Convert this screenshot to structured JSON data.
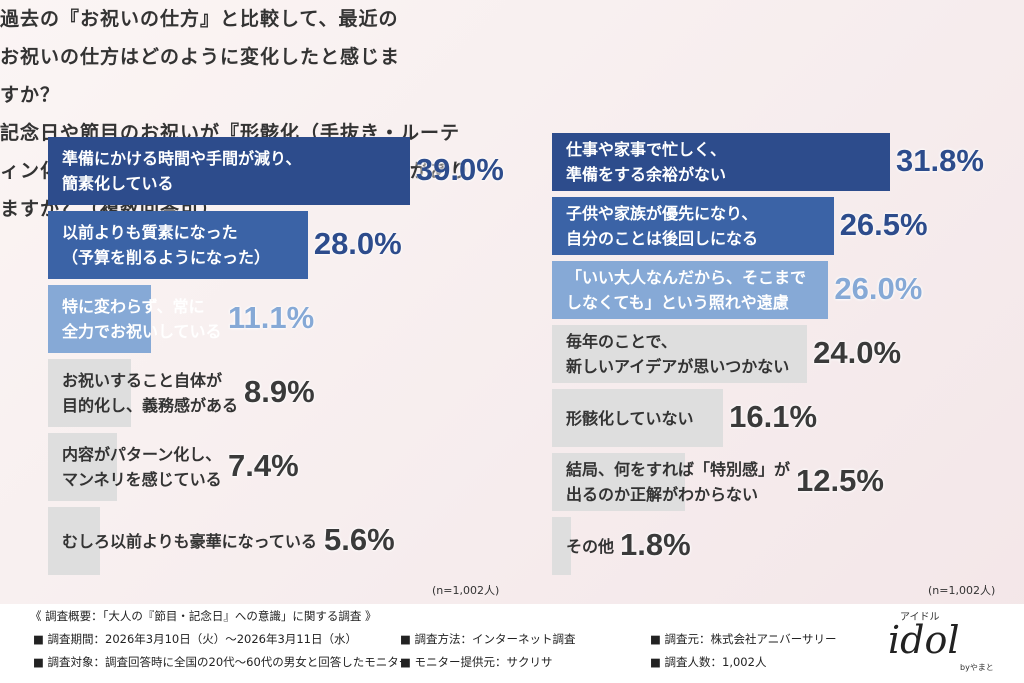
{
  "chart_data": [
    {
      "type": "bar",
      "orientation": "horizontal",
      "title": "過去の『お祝いの仕方』と比較して、最近のお祝いの仕方はどのように変化したと感じますか？",
      "categories": [
        "準備にかける時間や手間が減り、\n簡素化している",
        "以前よりも質素になった\n（予算を削るようになった）",
        "特に変わらず、常に\n全力でお祝いしている",
        "お祝いすること自体が\n目的化し、義務感がある",
        "内容がパターン化し、\nマンネリを感じている",
        "むしろ以前よりも豪華になっている"
      ],
      "values": [
        39.0,
        28.0,
        11.1,
        8.9,
        7.4,
        5.6
      ],
      "value_labels": [
        "39.0%",
        "28.0%",
        "11.1%",
        "8.9%",
        "7.4%",
        "5.6%"
      ],
      "colors": [
        "#2d4c8c",
        "#3b63a6",
        "#86a9d6",
        "#dedede",
        "#dedede",
        "#dedede"
      ],
      "note": "(n=1,002人)"
    },
    {
      "type": "bar",
      "orientation": "horizontal",
      "title": "記念日や節目のお祝いが『形骸化（手抜き・ルーティン化）』してしまう理由にはどのようなものがありますか？（複数回答可）",
      "categories": [
        "仕事や家事で忙しく、\n準備をする余裕がない",
        "子供や家族が優先になり、\n自分のことは後回しになる",
        "「いい大人なんだから、そこまで\nしなくても」という照れや遠慮",
        "毎年のことで、\n新しいアイデアが思いつかない",
        "形骸化していない",
        "結局、何をすれば「特別感」が\n出るのか正解がわからない",
        "その他"
      ],
      "values": [
        31.8,
        26.5,
        26.0,
        24.0,
        16.1,
        12.5,
        1.8
      ],
      "value_labels": [
        "31.8%",
        "26.5%",
        "26.0%",
        "24.0%",
        "16.1%",
        "12.5%",
        "1.8%"
      ],
      "colors": [
        "#2d4c8c",
        "#3b63a6",
        "#86a9d6",
        "#dedede",
        "#dedede",
        "#dedede",
        "#dedede"
      ],
      "note": "(n=1,002人)"
    }
  ],
  "footer": {
    "title": "《 調査概要：「大人の『節目・記念日』への意識」に関する調査 》",
    "items": [
      "■ 調査期間：2026年3月10日（火）～2026年3月11日（水）",
      "■ 調査方法：インターネット調査",
      "■ 調査元：株式会社アニバーサリー",
      "■ 調査対象：調査回答時に全国の20代～60代の男女と回答したモニター",
      "■ モニター提供元：サクリサ",
      "■ 調査人数：1,002人"
    ]
  },
  "logo": {
    "kana": "アイドル",
    "name": "idol",
    "sub": "byやまと"
  }
}
